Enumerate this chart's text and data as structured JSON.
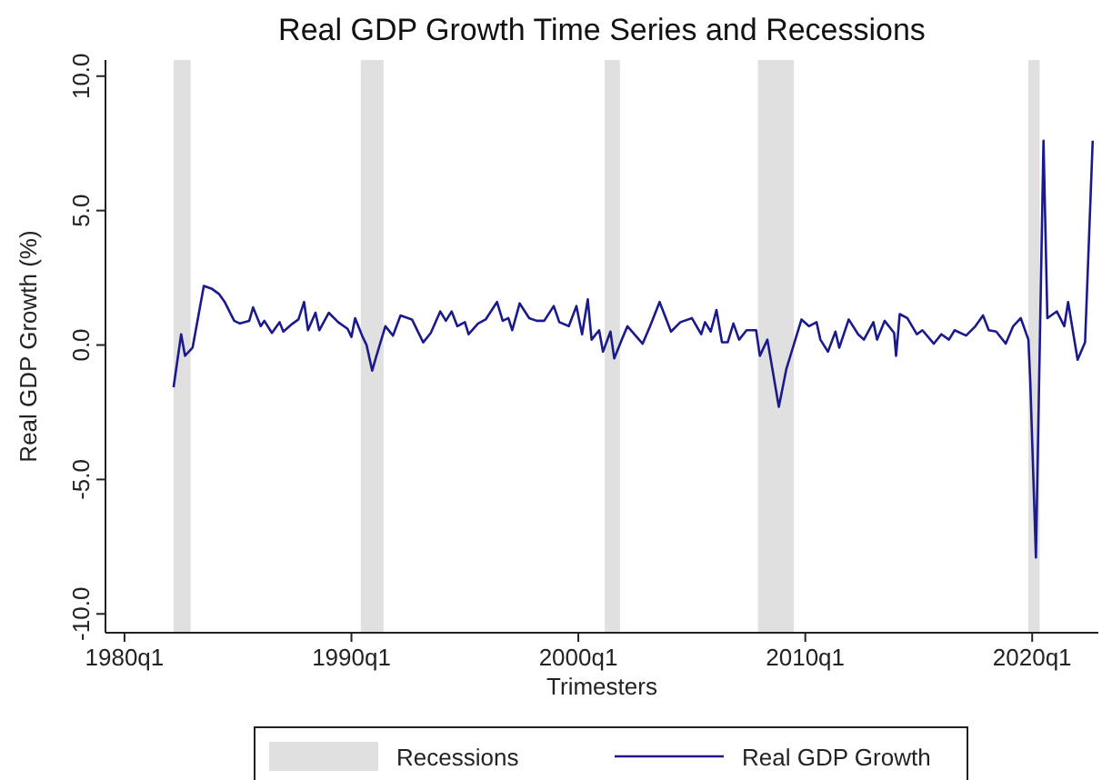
{
  "chart_data": {
    "type": "line",
    "title": "Real GDP Growth Time Series and Recessions",
    "xlabel": "Trimesters",
    "ylabel": "Real GDP Growth (%)",
    "xlim": [
      "1979-03",
      "2022-12"
    ],
    "xticks": [
      {
        "value": "1980-01",
        "label": "1980q1"
      },
      {
        "value": "1990-01",
        "label": "1990q1"
      },
      {
        "value": "2000-01",
        "label": "2000q1"
      },
      {
        "value": "2010-01",
        "label": "2010q1"
      },
      {
        "value": "2020-01",
        "label": "2020q1"
      }
    ],
    "ylim": [
      -10.7,
      10.6
    ],
    "yticks": [
      {
        "value": -10,
        "label": "-10.0"
      },
      {
        "value": -5,
        "label": "-5.0"
      },
      {
        "value": 0,
        "label": "0.0"
      },
      {
        "value": 5,
        "label": "5.0"
      },
      {
        "value": 10,
        "label": "10.0"
      }
    ],
    "grid": false,
    "legend": "bottom",
    "bands": [
      {
        "axis": "x",
        "from": "1982-03",
        "to": "1982-12",
        "label": "Recessions",
        "color": "#e0e0e0"
      },
      {
        "axis": "x",
        "from": "1990-06",
        "to": "1991-06",
        "color": "#e0e0e0"
      },
      {
        "axis": "x",
        "from": "2001-03",
        "to": "2001-11",
        "color": "#e0e0e0"
      },
      {
        "axis": "x",
        "from": "2007-12",
        "to": "2009-07",
        "color": "#e0e0e0"
      },
      {
        "axis": "x",
        "from": "2019-11",
        "to": "2020-05",
        "color": "#e0e0e0"
      }
    ],
    "series": [
      {
        "name": "Real GDP Growth",
        "color": "#1a1a8c",
        "x": [
          "1982-03",
          "1982-07",
          "1982-09",
          "1983-01",
          "1983-07",
          "1983-11",
          "1984-03",
          "1984-06",
          "1984-11",
          "1985-02",
          "1985-07",
          "1985-09",
          "1986-01",
          "1986-03",
          "1986-07",
          "1986-11",
          "1987-01",
          "1987-06",
          "1987-09",
          "1987-12",
          "1988-02",
          "1988-06",
          "1988-08",
          "1989-01",
          "1989-06",
          "1989-11",
          "1990-01",
          "1990-03",
          "1990-07",
          "1990-09",
          "1990-12",
          "1991-02",
          "1991-07",
          "1991-11",
          "1992-03",
          "1992-09",
          "1993-03",
          "1993-07",
          "1993-12",
          "1994-03",
          "1994-06",
          "1994-09",
          "1995-01",
          "1995-03",
          "1995-08",
          "1995-12",
          "1996-06",
          "1996-09",
          "1996-12",
          "1997-02",
          "1997-06",
          "1997-11",
          "1998-03",
          "1998-07",
          "1998-12",
          "1999-03",
          "1999-08",
          "1999-12",
          "2000-03",
          "2000-06",
          "2000-08",
          "2000-12",
          "2001-02",
          "2001-06",
          "2001-08",
          "2001-12",
          "2002-03",
          "2002-11",
          "2003-03",
          "2003-08",
          "2004-02",
          "2004-07",
          "2005-01",
          "2005-06",
          "2005-08",
          "2005-11",
          "2006-02",
          "2006-05",
          "2006-08",
          "2006-11",
          "2007-02",
          "2007-06",
          "2007-11",
          "2008-01",
          "2008-05",
          "2008-11",
          "2009-03",
          "2009-11",
          "2010-03",
          "2010-07",
          "2010-09",
          "2011-01",
          "2011-05",
          "2011-07",
          "2011-12",
          "2012-05",
          "2012-08",
          "2013-01",
          "2013-03",
          "2013-07",
          "2013-12",
          "2014-01",
          "2014-03",
          "2014-07",
          "2014-12",
          "2015-03",
          "2015-09",
          "2016-01",
          "2016-05",
          "2016-08",
          "2017-02",
          "2017-07",
          "2017-11",
          "2018-02",
          "2018-06",
          "2018-11",
          "2019-03",
          "2019-07",
          "2019-11",
          "2019-12",
          "2020-03",
          "2020-07",
          "2020-09",
          "2021-02",
          "2021-06",
          "2021-08",
          "2022-01",
          "2022-05",
          "2022-09"
        ],
        "values": [
          -1.57,
          0.4,
          -0.4,
          -0.1,
          2.2,
          2.1,
          1.9,
          1.6,
          0.9,
          0.8,
          0.9,
          1.4,
          0.7,
          0.9,
          0.45,
          0.85,
          0.5,
          0.8,
          0.95,
          1.6,
          0.55,
          1.2,
          0.55,
          1.2,
          0.85,
          0.6,
          0.3,
          1.0,
          0.3,
          0.0,
          -0.95,
          -0.45,
          0.7,
          0.35,
          1.1,
          0.95,
          0.1,
          0.45,
          1.25,
          0.9,
          1.25,
          0.7,
          0.85,
          0.4,
          0.8,
          0.95,
          1.6,
          0.9,
          1.0,
          0.55,
          1.55,
          1.0,
          0.9,
          0.9,
          1.45,
          0.85,
          0.7,
          1.45,
          0.4,
          1.7,
          0.2,
          0.55,
          -0.25,
          0.5,
          -0.5,
          0.2,
          0.7,
          0.05,
          0.7,
          1.6,
          0.5,
          0.85,
          1.0,
          0.4,
          0.85,
          0.5,
          1.3,
          0.1,
          0.1,
          0.8,
          0.2,
          0.55,
          0.55,
          -0.4,
          0.2,
          -2.3,
          -0.9,
          0.95,
          0.7,
          0.85,
          0.2,
          -0.25,
          0.5,
          -0.1,
          0.95,
          0.4,
          0.2,
          0.85,
          0.2,
          0.9,
          0.45,
          -0.4,
          1.15,
          1.0,
          0.4,
          0.55,
          0.05,
          0.4,
          0.2,
          0.55,
          0.35,
          0.7,
          1.1,
          0.55,
          0.5,
          0.05,
          0.7,
          1.0,
          0.2,
          -1.35,
          -7.9,
          7.6,
          1.0,
          1.25,
          0.7,
          1.6,
          -0.55,
          0.1,
          7.6
        ]
      }
    ]
  }
}
